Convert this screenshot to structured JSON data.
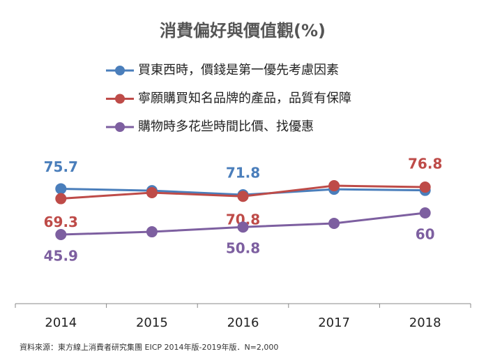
{
  "chart_data": {
    "type": "line",
    "title": "消費偏好與價值觀(%)",
    "categories": [
      "2014",
      "2015",
      "2016",
      "2017",
      "2018"
    ],
    "series": [
      {
        "name": "買東西時，價錢是第一優先考慮因素",
        "color": "#4a7ebb",
        "values": [
          75.7,
          74.5,
          71.8,
          75.4,
          74.7
        ],
        "labeled": [
          0,
          2
        ]
      },
      {
        "name": "寧願購買知名品牌的產品，品質有保障",
        "color": "#be4b48",
        "values": [
          69.3,
          73.2,
          70.8,
          77.7,
          76.8
        ],
        "labeled": [
          0,
          2,
          4
        ]
      },
      {
        "name": "購物時多花些時間比價、找優惠",
        "color": "#7d5fa0",
        "values": [
          45.9,
          47.7,
          50.8,
          53.2,
          60.0
        ],
        "labeled": [
          0,
          2,
          4
        ]
      }
    ],
    "ylim": [
      0,
      100
    ],
    "note": "資料來源：東方線上消費者研究集團 EICP 2014年版-2019年版．N=2,000"
  }
}
